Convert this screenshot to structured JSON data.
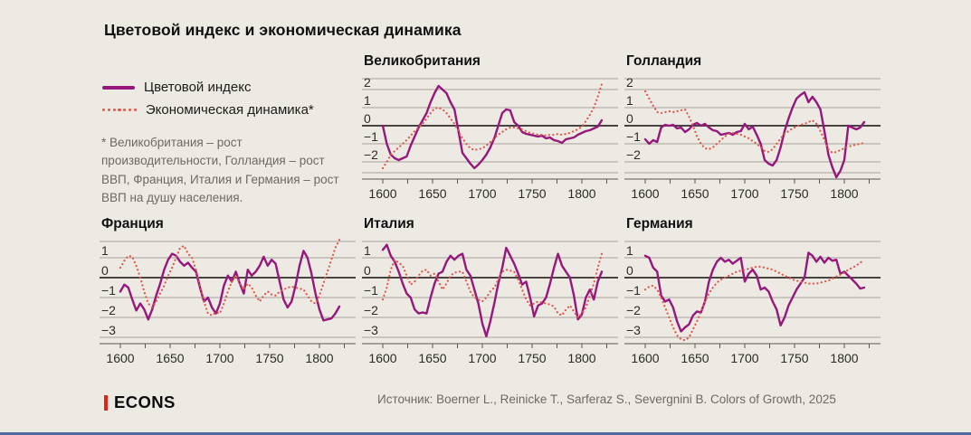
{
  "header": {
    "title": "Цветовой индекс и экономическая динамика"
  },
  "legend": [
    {
      "label": "Цветовой индекс",
      "type": "solid",
      "color": "#97187C"
    },
    {
      "label": "Экономическая динамика*",
      "type": "dotted",
      "color": "#E2574B"
    }
  ],
  "footnote": {
    "text": "* Великобритания – рост производительности, Голландия – рост ВВП, Франция, Италия и Германия – рост ВВП на душу населения."
  },
  "footer": {
    "logo_text": "ECONS",
    "source": "Источник: Boerner L., Reinicke T., Sarferaz S., Severgnini B. Colors of Growth, 2025"
  },
  "colors": {
    "grid": "#A6A29B",
    "zero": "#2F2D2A",
    "axis": "#5A5751",
    "background": "#EDE9E3",
    "accent_bar": "#52699F",
    "logo_red": "#E2231A"
  },
  "chart_data": [
    {
      "type": "line",
      "title": "Великобритания",
      "x_start": 1600,
      "x_step": 4,
      "xticks_labeled": [
        1600,
        1650,
        1700,
        1750,
        1800
      ],
      "yticks": [
        2,
        1,
        0,
        -1,
        -2
      ],
      "ylim": [
        -2.6,
        2.6
      ],
      "xlim": [
        1579,
        1836
      ],
      "grid": true,
      "series": [
        {
          "name": "Цветовой индекс",
          "style": "solid",
          "color": "#97187C",
          "values": [
            0.0,
            -1.0,
            -1.6,
            -1.8,
            -1.9,
            -1.8,
            -1.7,
            -1.1,
            -0.6,
            -0.1,
            0.3,
            0.7,
            1.3,
            1.8,
            2.2,
            2.0,
            1.8,
            1.3,
            0.9,
            -0.3,
            -1.5,
            -1.8,
            -2.1,
            -2.35,
            -2.15,
            -1.9,
            -1.6,
            -1.2,
            -0.7,
            0.0,
            0.7,
            0.9,
            0.85,
            0.2,
            0.0,
            -0.35,
            -0.45,
            -0.5,
            -0.55,
            -0.6,
            -0.55,
            -0.7,
            -0.65,
            -0.8,
            -0.85,
            -0.95,
            -0.75,
            -0.7,
            -0.65,
            -0.5,
            -0.4,
            -0.3,
            -0.25,
            -0.15,
            -0.05,
            0.3
          ]
        },
        {
          "name": "Экономическая динамика",
          "style": "dotted",
          "color": "#E2574B",
          "values": [
            -2.35,
            -2.0,
            -1.6,
            -1.4,
            -1.2,
            -1.0,
            -0.8,
            -0.55,
            -0.3,
            -0.1,
            0.1,
            0.4,
            0.7,
            0.95,
            1.0,
            0.9,
            0.7,
            0.4,
            0.1,
            -0.3,
            -0.7,
            -1.0,
            -1.25,
            -1.35,
            -1.3,
            -1.25,
            -1.1,
            -0.9,
            -0.7,
            -0.5,
            -0.35,
            -0.2,
            -0.1,
            -0.1,
            -0.15,
            -0.2,
            -0.3,
            -0.4,
            -0.45,
            -0.5,
            -0.5,
            -0.55,
            -0.5,
            -0.5,
            -0.45,
            -0.5,
            -0.45,
            -0.4,
            -0.3,
            -0.2,
            -0.05,
            0.25,
            0.6,
            1.0,
            1.6,
            2.3
          ]
        }
      ]
    },
    {
      "type": "line",
      "title": "Голландия",
      "x_start": 1600,
      "x_step": 4,
      "xticks_labeled": [
        1600,
        1650,
        1700,
        1750,
        1800
      ],
      "yticks": [
        2,
        1,
        0,
        -1,
        -2
      ],
      "ylim": [
        -2.6,
        2.6
      ],
      "xlim": [
        1579,
        1836
      ],
      "grid": true,
      "series": [
        {
          "name": "Цветовой индекс",
          "style": "solid",
          "color": "#97187C",
          "values": [
            -0.75,
            -1.0,
            -0.8,
            -0.9,
            -0.1,
            0.05,
            0.0,
            0.05,
            -0.15,
            -0.1,
            -0.35,
            -0.2,
            0.05,
            0.15,
            0.0,
            0.1,
            -0.1,
            -0.25,
            -0.3,
            -0.5,
            -0.45,
            -0.4,
            -0.5,
            -0.35,
            -0.3,
            0.1,
            -0.2,
            -0.05,
            -0.5,
            -1.0,
            -1.9,
            -2.1,
            -2.2,
            -1.9,
            -1.2,
            -0.3,
            0.4,
            1.0,
            1.5,
            1.7,
            1.85,
            1.3,
            1.6,
            1.3,
            0.9,
            -0.3,
            -1.6,
            -2.3,
            -2.85,
            -2.5,
            -1.9,
            0.0,
            -0.1,
            -0.2,
            -0.1,
            0.2
          ]
        },
        {
          "name": "Экономическая динамика",
          "style": "dotted",
          "color": "#E2574B",
          "values": [
            1.9,
            1.5,
            1.1,
            0.75,
            0.7,
            0.75,
            0.8,
            0.75,
            0.8,
            0.85,
            0.9,
            0.5,
            0.0,
            -0.6,
            -1.0,
            -1.25,
            -1.3,
            -1.2,
            -1.0,
            -0.8,
            -0.6,
            -0.45,
            -0.4,
            -0.45,
            -0.5,
            -0.6,
            -0.7,
            -0.85,
            -1.0,
            -1.2,
            -1.4,
            -1.45,
            -1.3,
            -1.0,
            -0.7,
            -0.45,
            -0.3,
            -0.15,
            -0.05,
            0.05,
            0.1,
            0.2,
            0.3,
            0.1,
            -0.3,
            -0.8,
            -1.3,
            -1.5,
            -1.45,
            -1.35,
            -1.25,
            -1.15,
            -1.1,
            -1.05,
            -1.0,
            -0.95
          ]
        }
      ]
    },
    {
      "type": "line",
      "title": "Франция",
      "x_start": 1600,
      "x_step": 4,
      "xticks_labeled": [
        1600,
        1650,
        1700,
        1750,
        1800
      ],
      "yticks": [
        1,
        0,
        -1,
        -2,
        -3
      ],
      "ylim": [
        -3.32,
        1.82
      ],
      "xlim": [
        1579,
        1836
      ],
      "grid": true,
      "series": [
        {
          "name": "Цветовой индекс",
          "style": "solid",
          "color": "#97187C",
          "values": [
            -0.7,
            -0.35,
            -0.5,
            -1.1,
            -1.65,
            -1.3,
            -1.6,
            -2.1,
            -1.6,
            -0.9,
            -0.3,
            0.4,
            0.9,
            1.2,
            1.1,
            0.8,
            0.6,
            0.75,
            0.5,
            0.3,
            -0.5,
            -1.2,
            -1.0,
            -1.5,
            -1.8,
            -1.3,
            -0.4,
            0.1,
            -0.2,
            0.3,
            -0.3,
            -0.8,
            0.4,
            0.1,
            0.3,
            0.6,
            1.05,
            0.6,
            0.9,
            0.7,
            -0.2,
            -1.1,
            -1.5,
            -1.2,
            -0.4,
            0.6,
            1.35,
            1.0,
            0.2,
            -0.8,
            -1.6,
            -2.15,
            -2.1,
            -2.05,
            -1.8,
            -1.45
          ]
        },
        {
          "name": "Экономическая динамика",
          "style": "dotted",
          "color": "#E2574B",
          "values": [
            0.5,
            0.85,
            1.1,
            1.05,
            0.6,
            0.0,
            -0.7,
            -1.3,
            -1.5,
            -1.2,
            -0.8,
            -0.4,
            0.1,
            0.5,
            1.0,
            1.5,
            1.6,
            1.2,
            1.0,
            0.4,
            -0.4,
            -1.2,
            -1.8,
            -1.9,
            -1.75,
            -1.8,
            -1.3,
            -0.7,
            -0.2,
            0.1,
            -0.3,
            -0.6,
            -0.3,
            -0.5,
            -0.9,
            -1.2,
            -0.9,
            -0.7,
            -0.85,
            -0.9,
            -0.7,
            -0.6,
            -0.5,
            -0.45,
            -0.5,
            -0.55,
            -0.6,
            -0.9,
            -1.2,
            -1.3,
            -0.9,
            -0.3,
            0.3,
            0.9,
            1.5,
            1.9
          ]
        }
      ]
    },
    {
      "type": "line",
      "title": "Италия",
      "x_start": 1600,
      "x_step": 4,
      "xticks_labeled": [
        1600,
        1650,
        1700,
        1750,
        1800
      ],
      "yticks": [
        1,
        0,
        -1,
        -2,
        -3
      ],
      "ylim": [
        -3.32,
        1.82
      ],
      "xlim": [
        1579,
        1836
      ],
      "grid": true,
      "series": [
        {
          "name": "Цветовой индекс",
          "style": "solid",
          "color": "#97187C",
          "values": [
            1.4,
            1.65,
            1.1,
            0.8,
            0.3,
            -0.3,
            -0.8,
            -1.0,
            -1.6,
            -1.8,
            -1.75,
            -1.8,
            -1.0,
            -0.3,
            0.2,
            0.3,
            0.8,
            1.1,
            0.9,
            1.1,
            1.2,
            0.4,
            0.1,
            -0.6,
            -1.3,
            -2.3,
            -2.95,
            -2.2,
            -1.3,
            -0.3,
            0.5,
            1.5,
            1.1,
            0.7,
            0.2,
            -0.35,
            -0.2,
            -1.0,
            -1.95,
            -1.4,
            -1.3,
            -1.0,
            -0.3,
            0.5,
            1.2,
            0.6,
            0.3,
            0.0,
            -0.9,
            -2.1,
            -1.85,
            -1.0,
            -0.6,
            -1.1,
            -0.2,
            0.3
          ]
        },
        {
          "name": "Экономическая динамика",
          "style": "dotted",
          "color": "#E2574B",
          "values": [
            -1.1,
            -0.5,
            0.4,
            0.9,
            0.75,
            0.6,
            0.1,
            -0.35,
            -0.2,
            0.1,
            0.35,
            0.4,
            0.1,
            0.2,
            -0.2,
            -0.6,
            -0.3,
            0.1,
            0.25,
            0.3,
            0.3,
            -0.2,
            -0.7,
            -1.0,
            -1.1,
            -1.2,
            -1.0,
            -0.7,
            -0.5,
            -0.1,
            0.3,
            0.4,
            0.35,
            0.3,
            -0.1,
            -0.6,
            -1.1,
            -1.4,
            -1.3,
            -1.2,
            -1.25,
            -1.3,
            -1.35,
            -1.45,
            -1.8,
            -1.9,
            -1.6,
            -1.4,
            -1.7,
            -2.0,
            -1.8,
            -1.5,
            -0.9,
            -0.3,
            0.5,
            1.2
          ]
        }
      ]
    },
    {
      "type": "line",
      "title": "Германия",
      "x_start": 1600,
      "x_step": 4,
      "xticks_labeled": [
        1600,
        1650,
        1700,
        1750,
        1800
      ],
      "yticks": [
        1,
        0,
        -1,
        -2,
        -3
      ],
      "ylim": [
        -3.32,
        1.82
      ],
      "xlim": [
        1579,
        1836
      ],
      "grid": true,
      "series": [
        {
          "name": "Цветовой индекс",
          "style": "solid",
          "color": "#97187C",
          "values": [
            1.1,
            1.0,
            0.5,
            0.3,
            -0.9,
            -1.2,
            -1.1,
            -1.5,
            -2.2,
            -2.7,
            -2.5,
            -2.35,
            -1.9,
            -1.7,
            -1.75,
            -1.2,
            -0.2,
            0.4,
            0.8,
            1.0,
            0.8,
            0.9,
            0.7,
            0.85,
            1.0,
            -0.2,
            0.2,
            0.4,
            0.1,
            -0.6,
            -0.5,
            -0.7,
            -1.2,
            -1.6,
            -2.4,
            -2.0,
            -1.4,
            -1.0,
            -0.6,
            -0.3,
            0.0,
            1.25,
            1.1,
            0.8,
            1.05,
            0.75,
            1.0,
            0.85,
            0.9,
            0.2,
            0.3,
            0.1,
            -0.1,
            -0.3,
            -0.55,
            -0.5
          ]
        },
        {
          "name": "Экономическая динамика",
          "style": "dotted",
          "color": "#E2574B",
          "values": [
            -0.6,
            -0.45,
            -0.4,
            -0.6,
            -1.0,
            -1.5,
            -2.0,
            -2.5,
            -2.9,
            -3.1,
            -3.15,
            -3.0,
            -2.6,
            -2.2,
            -1.7,
            -1.2,
            -0.8,
            -0.5,
            -0.25,
            -0.1,
            0.0,
            0.1,
            0.2,
            0.3,
            0.35,
            0.4,
            0.45,
            0.5,
            0.55,
            0.55,
            0.5,
            0.45,
            0.4,
            0.3,
            0.2,
            0.1,
            0.0,
            -0.1,
            -0.15,
            -0.2,
            -0.25,
            -0.3,
            -0.3,
            -0.3,
            -0.25,
            -0.2,
            -0.15,
            -0.05,
            0.05,
            0.15,
            0.25,
            0.4,
            0.5,
            0.6,
            0.75,
            0.9
          ]
        }
      ]
    }
  ]
}
